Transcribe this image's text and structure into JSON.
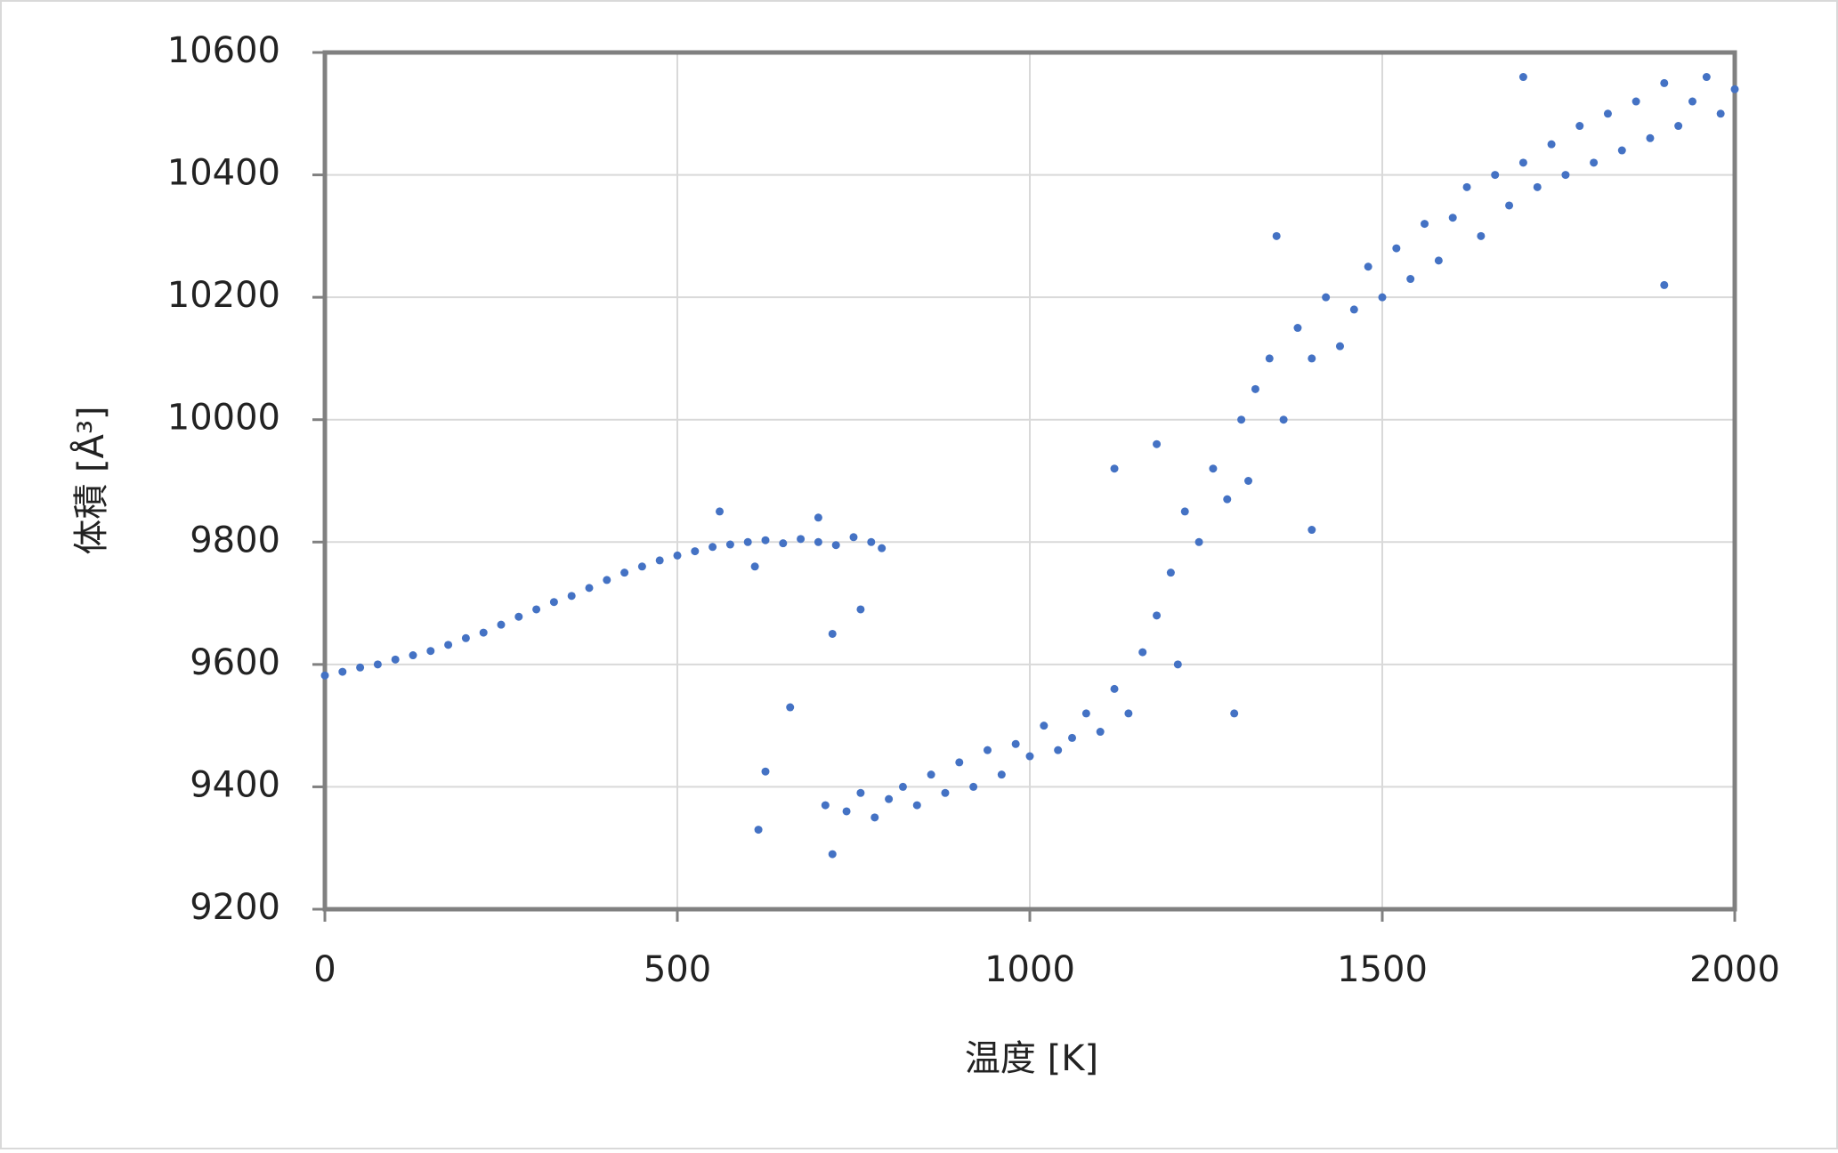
{
  "chart_data": {
    "type": "scatter",
    "x_label": "温度 [K]",
    "y_label": "体積 [Å³]",
    "x": [
      0,
      25,
      50,
      75,
      100,
      125,
      150,
      175,
      200,
      225,
      250,
      275,
      300,
      325,
      350,
      375,
      400,
      425,
      450,
      475,
      500,
      525,
      550,
      575,
      600,
      625,
      650,
      675,
      700,
      725,
      750,
      775,
      790,
      560,
      610,
      700,
      720,
      760,
      660,
      625,
      615,
      710,
      720,
      740,
      760,
      780,
      800,
      820,
      840,
      860,
      880,
      900,
      920,
      940,
      960,
      980,
      1000,
      1020,
      1040,
      1060,
      1080,
      1100,
      1120,
      1140,
      1160,
      1180,
      1200,
      1210,
      1220,
      1240,
      1260,
      1280,
      1300,
      1310,
      1320,
      1340,
      1360,
      1380,
      1400,
      1420,
      1440,
      1460,
      1480,
      1500,
      1520,
      1540,
      1560,
      1580,
      1600,
      1620,
      1640,
      1660,
      1680,
      1700,
      1720,
      1740,
      1760,
      1780,
      1800,
      1820,
      1840,
      1860,
      1880,
      1900,
      1920,
      1940,
      1960,
      1980,
      2000,
      1400,
      1290,
      1350,
      1180,
      1900,
      1120,
      1700
    ],
    "values": [
      9582,
      9588,
      9595,
      9600,
      9608,
      9615,
      9622,
      9632,
      9643,
      9652,
      9665,
      9678,
      9690,
      9702,
      9712,
      9725,
      9738,
      9750,
      9760,
      9770,
      9778,
      9785,
      9792,
      9796,
      9800,
      9803,
      9798,
      9805,
      9800,
      9795,
      9808,
      9800,
      9790,
      9850,
      9760,
      9840,
      9650,
      9690,
      9530,
      9425,
      9330,
      9370,
      9290,
      9360,
      9390,
      9350,
      9380,
      9400,
      9370,
      9420,
      9390,
      9440,
      9400,
      9460,
      9420,
      9470,
      9450,
      9500,
      9460,
      9480,
      9520,
      9490,
      9560,
      9520,
      9620,
      9680,
      9750,
      9600,
      9850,
      9800,
      9920,
      9870,
      10000,
      9900,
      10050,
      10100,
      10000,
      10150,
      10100,
      10200,
      10120,
      10180,
      10250,
      10200,
      10280,
      10230,
      10320,
      10260,
      10330,
      10380,
      10300,
      10400,
      10350,
      10420,
      10380,
      10450,
      10400,
      10480,
      10420,
      10500,
      10440,
      10520,
      10460,
      10550,
      10480,
      10520,
      10560,
      10500,
      10540,
      9820,
      9520,
      10300,
      9960,
      10220,
      9920,
      10560
    ],
    "color": "#4472c4",
    "xlim": [
      0,
      2000
    ],
    "xticks": [
      0,
      500,
      1000,
      1500,
      2000
    ],
    "ylim": [
      9200,
      10600
    ],
    "yticks": [
      9200,
      9400,
      9600,
      9800,
      10000,
      10200,
      10400,
      10600
    ],
    "grid": true
  }
}
